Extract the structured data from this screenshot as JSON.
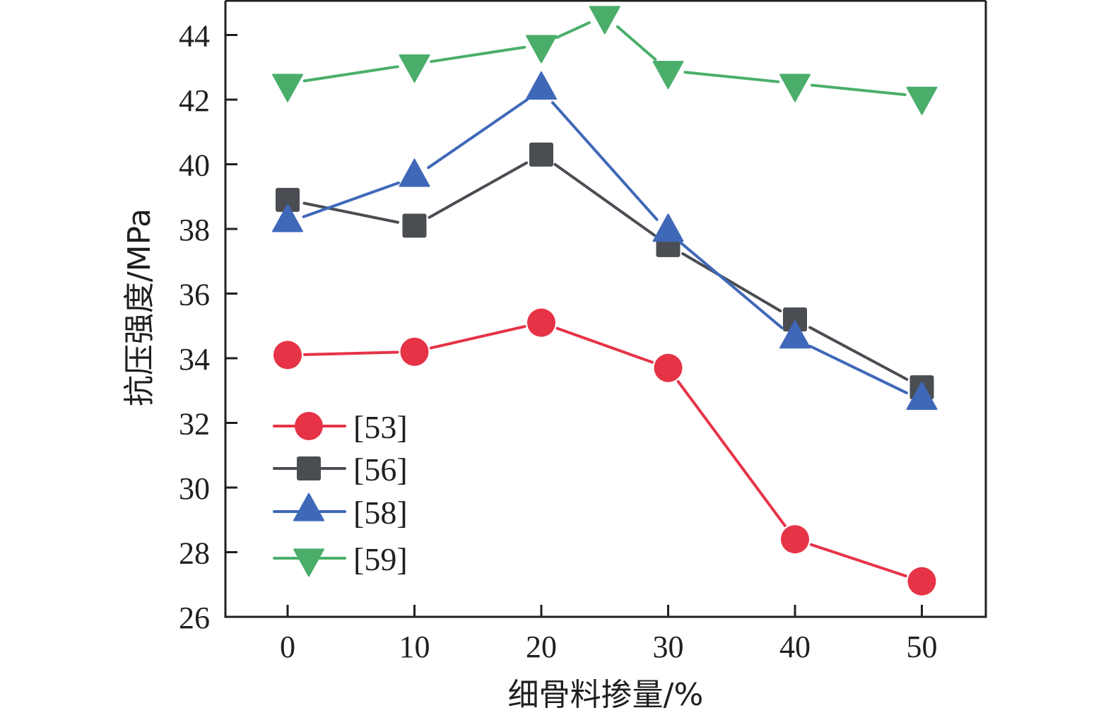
{
  "chart_data": {
    "type": "line",
    "title": "",
    "xlabel": "细骨料掺量/%",
    "ylabel": "抗压强度/MPa",
    "xlim": [
      -5,
      55
    ],
    "ylim": [
      26,
      45
    ],
    "xticks": [
      0,
      10,
      20,
      30,
      40,
      50
    ],
    "xtick_labels": [
      "0",
      "10",
      "20",
      "30",
      "40",
      "50"
    ],
    "yticks": [
      26,
      28,
      30,
      32,
      34,
      36,
      38,
      40,
      42,
      44
    ],
    "ytick_labels": [
      "26",
      "28",
      "30",
      "32",
      "34",
      "36",
      "38",
      "40",
      "42",
      "44"
    ],
    "grid": false,
    "legend_position": "bottom-left",
    "series": [
      {
        "name": "[53]",
        "marker": "circle",
        "color": "#e63346",
        "x": [
          0,
          10,
          20,
          30,
          40,
          50
        ],
        "values": [
          34.1,
          34.2,
          35.1,
          33.7,
          28.4,
          27.1
        ]
      },
      {
        "name": "[56]",
        "marker": "square",
        "color": "#4a4d52",
        "x": [
          0,
          10,
          20,
          30,
          40,
          50
        ],
        "values": [
          38.9,
          38.1,
          40.3,
          37.5,
          35.2,
          33.1
        ]
      },
      {
        "name": "[58]",
        "marker": "triangle-up",
        "color": "#3f68b8",
        "x": [
          0,
          10,
          20,
          30,
          40,
          50
        ],
        "values": [
          38.2,
          39.6,
          42.3,
          37.9,
          34.6,
          32.7
        ]
      },
      {
        "name": "[59]",
        "marker": "triangle-down",
        "color": "#4aae6a",
        "x": [
          0,
          10,
          20,
          25,
          30,
          40,
          50
        ],
        "values": [
          42.5,
          43.1,
          43.7,
          44.6,
          42.9,
          42.5,
          42.1
        ]
      }
    ]
  }
}
